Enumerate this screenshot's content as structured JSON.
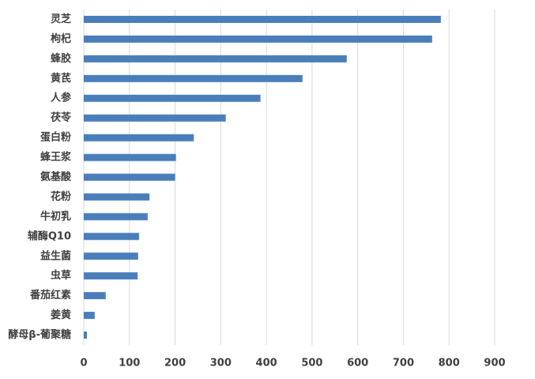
{
  "chart_data": {
    "type": "barh",
    "categories": [
      "灵芝",
      "枸杞",
      "蜂胶",
      "黄芪",
      "人参",
      "茯苓",
      "蛋白粉",
      "蜂王浆",
      "氨基酸",
      "花粉",
      "牛初乳",
      "辅酶Q10",
      "益生菌",
      "虫草",
      "番茄红素",
      "姜黄",
      "酵母β-葡聚糖"
    ],
    "values": [
      782,
      763,
      576,
      479,
      387,
      311,
      241,
      202,
      200,
      144,
      140,
      121,
      119,
      118,
      48,
      24,
      7
    ],
    "color": "#4a7ebb",
    "xlim": [
      0,
      900
    ],
    "xticks": [
      0,
      100,
      200,
      300,
      400,
      500,
      600,
      700,
      800,
      900
    ],
    "grid": true
  }
}
